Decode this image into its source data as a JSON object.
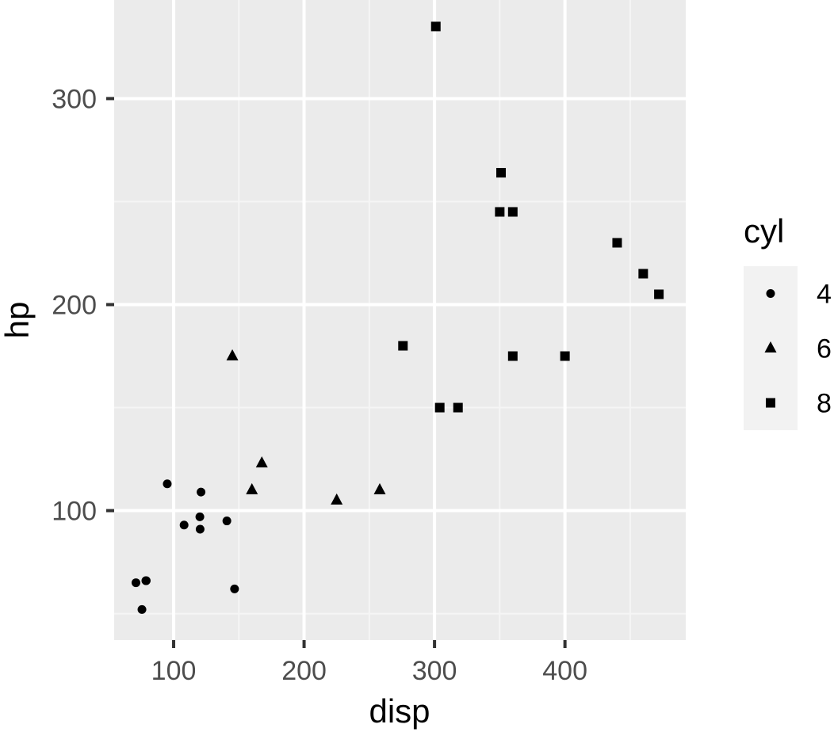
{
  "chart_data": {
    "type": "scatter",
    "xlabel": "disp",
    "ylabel": "hp",
    "xlim": [
      54.4,
      492.6
    ],
    "ylim": [
      37.15,
      347.85
    ],
    "x_ticks": [
      100,
      200,
      300,
      400
    ],
    "x_tick_labels": [
      "100",
      "200",
      "300",
      "400"
    ],
    "y_ticks": [
      100,
      200,
      300
    ],
    "y_tick_labels": [
      "100",
      "200",
      "300"
    ],
    "grid": true,
    "legend": {
      "title": "cyl",
      "position": "right",
      "entries": [
        "4",
        "6",
        "8"
      ]
    },
    "series": [
      {
        "name": "4",
        "shape": "circle",
        "points": [
          {
            "x": 108,
            "y": 93
          },
          {
            "x": 146.7,
            "y": 62
          },
          {
            "x": 140.8,
            "y": 95
          },
          {
            "x": 78.7,
            "y": 66
          },
          {
            "x": 75.7,
            "y": 52
          },
          {
            "x": 71.1,
            "y": 65
          },
          {
            "x": 120.1,
            "y": 97
          },
          {
            "x": 79,
            "y": 66
          },
          {
            "x": 120.3,
            "y": 91
          },
          {
            "x": 95.1,
            "y": 113
          },
          {
            "x": 121,
            "y": 109
          }
        ]
      },
      {
        "name": "6",
        "shape": "triangle",
        "points": [
          {
            "x": 160,
            "y": 110
          },
          {
            "x": 258,
            "y": 110
          },
          {
            "x": 225,
            "y": 105
          },
          {
            "x": 167.6,
            "y": 123
          },
          {
            "x": 145,
            "y": 175
          }
        ]
      },
      {
        "name": "8",
        "shape": "square",
        "points": [
          {
            "x": 360,
            "y": 175
          },
          {
            "x": 360,
            "y": 245
          },
          {
            "x": 275.8,
            "y": 180
          },
          {
            "x": 472,
            "y": 205
          },
          {
            "x": 460,
            "y": 215
          },
          {
            "x": 440,
            "y": 230
          },
          {
            "x": 318,
            "y": 150
          },
          {
            "x": 304,
            "y": 150
          },
          {
            "x": 350,
            "y": 245
          },
          {
            "x": 400,
            "y": 175
          },
          {
            "x": 351,
            "y": 264
          },
          {
            "x": 301,
            "y": 335
          }
        ]
      }
    ],
    "colors": {
      "panel_background": "#ebebeb",
      "grid_major": "#ffffff",
      "grid_minor": "#f5f5f5",
      "points": "#000000",
      "legend_key_background": "#f2f2f2",
      "tick_label": "#4d4d4d"
    }
  }
}
